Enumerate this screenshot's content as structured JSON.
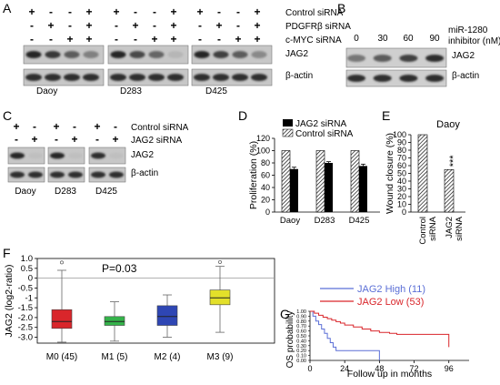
{
  "panels": {
    "A": {
      "letter": "A",
      "row_labels": [
        "Control siRNA",
        "PDGFRβ siRNA",
        "c-MYC siRNA"
      ],
      "marks": [
        [
          "+",
          "-",
          "-",
          "+"
        ],
        [
          "-",
          "+",
          "-",
          "+"
        ],
        [
          "-",
          "-",
          "+",
          "+"
        ]
      ],
      "band_labels": [
        "JAG2",
        "β-actin"
      ],
      "cell_lines": [
        "Daoy",
        "D283",
        "D425"
      ]
    },
    "B": {
      "letter": "B",
      "doses": [
        "0",
        "30",
        "60",
        "90"
      ],
      "treatment_line1": "miR-1280",
      "treatment_line2": "inhibitor (nM)",
      "band_labels": [
        "JAG2",
        "β-actin"
      ]
    },
    "C": {
      "letter": "C",
      "row_labels": [
        "Control siRNA",
        "JAG2 siRNA"
      ],
      "marks": [
        [
          "+",
          "-"
        ],
        [
          "-",
          "+"
        ]
      ],
      "band_labels": [
        "JAG2",
        "β-actin"
      ],
      "cell_lines": [
        "Daoy",
        "D283",
        "D425"
      ]
    },
    "F": {
      "letter": "F",
      "pvalue": "P=0.03"
    },
    "G": {
      "letter": "G"
    }
  },
  "chart_data": [
    {
      "panel": "D",
      "type": "bar",
      "categories": [
        "Daoy",
        "D283",
        "D425"
      ],
      "series": [
        {
          "name": "JAG2 siRNA",
          "values": [
            70,
            80,
            75
          ],
          "errors": [
            3,
            2,
            3
          ],
          "color": "#000000"
        },
        {
          "name": "Control siRNA",
          "values": [
            100,
            100,
            100
          ],
          "pattern": "hatched"
        }
      ],
      "ylabel": "Proliferation (%)",
      "ylim": [
        0,
        120
      ],
      "yticks": [
        0,
        20,
        40,
        60,
        80,
        100,
        120
      ],
      "legend": "top"
    },
    {
      "panel": "E",
      "type": "bar",
      "title": "Daoy",
      "categories": [
        "Control siRNA",
        "JAG2 siRNA"
      ],
      "category_lines": [
        [
          "Control",
          "siRNA"
        ],
        [
          "JAG2",
          "siRNA"
        ]
      ],
      "values": [
        100,
        55
      ],
      "annotation": "***",
      "ylabel": "Wound closure (%)",
      "ylim": [
        0,
        100
      ],
      "yticks": [
        0,
        10,
        20,
        30,
        40,
        50,
        60,
        70,
        80,
        90,
        100
      ],
      "pattern": "hatched"
    },
    {
      "panel": "F",
      "type": "box",
      "categories": [
        "M0 (45)",
        "M1 (5)",
        "M2 (4)",
        "M3 (9)"
      ],
      "boxes": [
        {
          "whisker_low": -3.25,
          "q1": -2.55,
          "median": -2.2,
          "q3": -1.6,
          "whisker_high": 0.4,
          "outlier": 0.8,
          "color": "#d9262b"
        },
        {
          "whisker_low": -3.2,
          "q1": -2.4,
          "median": -2.2,
          "q3": -1.95,
          "whisker_high": -1.2,
          "color": "#34b34a"
        },
        {
          "whisker_low": -3.0,
          "q1": -2.4,
          "median": -1.95,
          "q3": -1.4,
          "whisker_high": -0.85,
          "color": "#2e46b4"
        },
        {
          "whisker_low": -2.75,
          "q1": -1.35,
          "median": -1.0,
          "q3": -0.6,
          "whisker_high": 0.6,
          "outlier": 0.82,
          "color": "#e3e02a"
        }
      ],
      "ylabel": "JAG2 (log2-ratio)",
      "ylim": [
        -3.3,
        1.0
      ],
      "ytick_values": [
        1.0,
        0.5,
        0,
        -0.5,
        -1,
        -1.5,
        -2.0,
        -2.5,
        -3.0
      ],
      "ytick_labels": [
        "1.0",
        "0.5",
        "0",
        "-0.5",
        "-1",
        "-1.5",
        "-2.0",
        "-2.5",
        "-3.0"
      ],
      "reference_line": 0
    },
    {
      "panel": "G",
      "type": "line",
      "step": true,
      "series": [
        {
          "name": "JAG2 High (11)",
          "color": "#5b6fd6",
          "x": [
            0,
            2,
            4,
            6,
            8,
            10,
            12,
            14,
            16,
            18,
            48
          ],
          "y": [
            1.0,
            0.9,
            0.8,
            0.73,
            0.64,
            0.55,
            0.45,
            0.36,
            0.27,
            0.2,
            0.0
          ]
        },
        {
          "name": "JAG2 Low (53)",
          "color": "#d9262b",
          "x": [
            0,
            3,
            6,
            9,
            12,
            15,
            18,
            21,
            24,
            30,
            36,
            42,
            48,
            55,
            60,
            70,
            80,
            90,
            96
          ],
          "y": [
            1.0,
            0.96,
            0.92,
            0.88,
            0.85,
            0.82,
            0.79,
            0.76,
            0.72,
            0.68,
            0.64,
            0.6,
            0.57,
            0.55,
            0.53,
            0.53,
            0.53,
            0.53,
            0.27
          ]
        }
      ],
      "xlabel": "Follow up in months",
      "ylabel": "OS probability",
      "xlim": [
        0,
        110
      ],
      "ylim": [
        0,
        1.0
      ],
      "xticks": [
        0,
        24,
        48,
        72,
        96
      ],
      "ytick_values": [
        1.0,
        0.9,
        0.8,
        0.7,
        0.6,
        0.5,
        0.4,
        0.3,
        0.2,
        0.1,
        0
      ],
      "ytick_labels": [
        "1.00",
        "0.90",
        "0.80",
        "0.70",
        "0.60",
        "0.50",
        "0.40",
        "0.30",
        "0.20",
        "0.10",
        "0.00"
      ],
      "legend": "top-right"
    }
  ]
}
